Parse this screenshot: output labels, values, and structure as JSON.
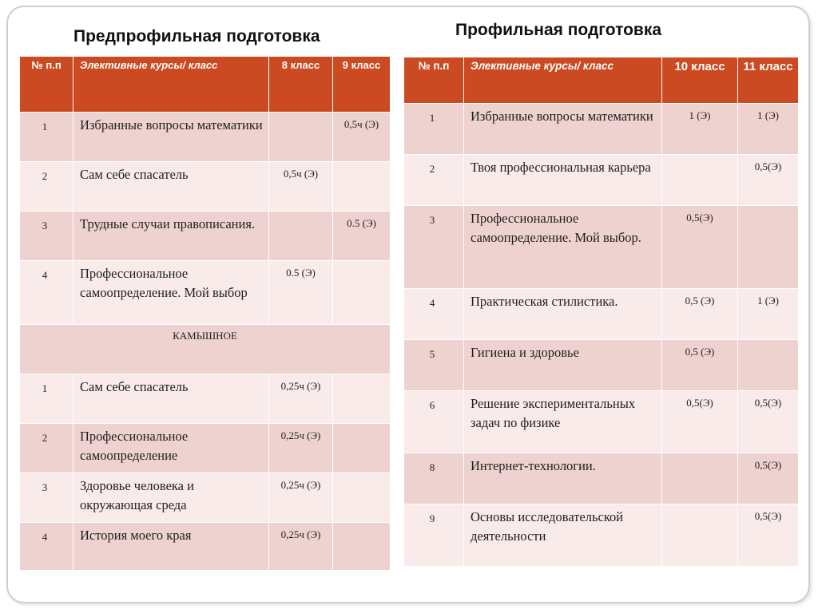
{
  "left": {
    "title": "Предпрофильная подготовка",
    "header": {
      "num": "№ п.п",
      "course": "Элективные курсы/ класс",
      "col1": "8 класс",
      "col2": "9 класс"
    },
    "rows": [
      {
        "num": "1",
        "course": "Избранные вопросы математики",
        "c1": "",
        "c2": "0,5ч (Э)"
      },
      {
        "num": "2",
        "course": "Сам себе спасатель",
        "c1": "0,5ч (Э)",
        "c2": ""
      },
      {
        "num": "3",
        "course": "Трудные случаи правописания.",
        "c1": "",
        "c2": "0.5 (Э)"
      },
      {
        "num": "4",
        "course": "Профессиональное самоопределение. Мой выбор",
        "c1": "0.5 (Э)",
        "c2": ""
      }
    ],
    "section": "КАМЫШНОЕ",
    "rows2": [
      {
        "num": "1",
        "course": "Сам себе спасатель",
        "c1": "0,25ч (Э)",
        "c2": ""
      },
      {
        "num": "2",
        "course": "Профессиональное самоопределение",
        "c1": "0,25ч (Э)",
        "c2": ""
      },
      {
        "num": "3",
        "course": "Здоровье человека и окружающая среда",
        "c1": "0,25ч (Э)",
        "c2": ""
      },
      {
        "num": "4",
        "course": "История моего края",
        "c1": "0,25ч (Э)",
        "c2": ""
      }
    ]
  },
  "right": {
    "title": "Профильная подготовка",
    "header": {
      "num": "№ п.п",
      "course": "Элективные курсы/ класс",
      "col1": "10 класс",
      "col2": "11 класс"
    },
    "rows": [
      {
        "num": "1",
        "course": "Избранные вопросы математики",
        "c1": "1 (Э)",
        "c2": "1 (Э)"
      },
      {
        "num": "2",
        "course": "Твоя профессиональная карьера",
        "c1": "",
        "c2": "0,5(Э)"
      },
      {
        "num": "3",
        "course": "Профессиональное самоопределение. Мой выбор.",
        "c1": "0,5(Э)",
        "c2": ""
      },
      {
        "num": "4",
        "course": "Практическая стилистика.",
        "c1": "0,5 (Э)",
        "c2": "1 (Э)"
      },
      {
        "num": "5",
        "course": "Гигиена и здоровье",
        "c1": "0,5 (Э)",
        "c2": ""
      },
      {
        "num": "6",
        "course": "Решение экспериментальных задач по физике",
        "c1": "0,5(Э)",
        "c2": "0,5(Э)"
      },
      {
        "num": "8",
        "course": "Интернет-технологии.",
        "c1": "",
        "c2": "0,5(Э)"
      },
      {
        "num": "9",
        "course": "Основы исследовательской деятельности",
        "c1": "",
        "c2": "0,5(Э)"
      }
    ]
  }
}
